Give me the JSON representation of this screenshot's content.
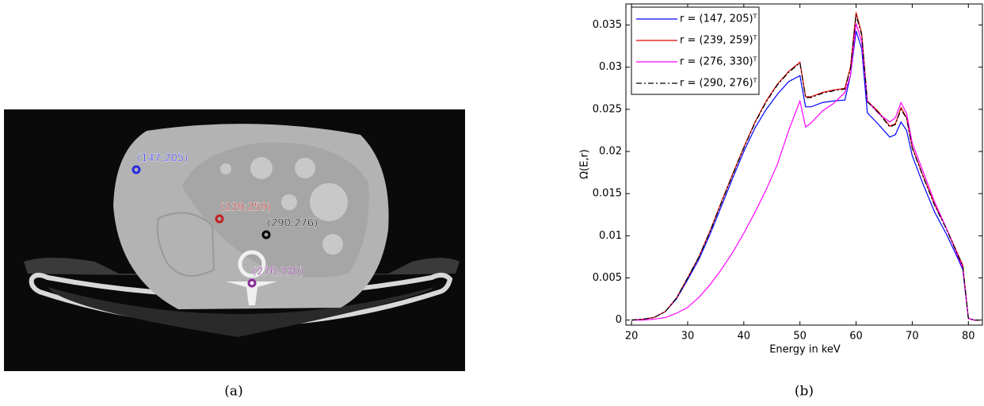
{
  "figure_a": {
    "annotations": [
      {
        "label": "(147;205)",
        "color": "#2a2ae0"
      },
      {
        "label": "(239;259)",
        "color": "#c02020"
      },
      {
        "label": "(290;276)",
        "color": "#000000"
      },
      {
        "label": "(276;330)",
        "color": "#8a2a9a"
      }
    ],
    "caption": "(a)"
  },
  "chart_data": {
    "type": "line",
    "xlabel": "Energy in keV",
    "ylabel": "Ω(E,r)",
    "x": [
      20,
      22,
      24,
      26,
      28,
      30,
      32,
      34,
      36,
      38,
      40,
      42,
      44,
      46,
      48,
      50,
      51,
      52,
      54,
      56,
      58,
      59,
      60,
      61,
      62,
      64,
      66,
      67,
      68,
      69,
      70,
      72,
      74,
      76,
      78,
      79,
      80,
      81,
      82
    ],
    "series": [
      {
        "name": "r = (147, 205)ᵀ",
        "color": "#0000ff",
        "line_style": "solid",
        "values": [
          0,
          0.0001,
          0.0003,
          0.001,
          0.0025,
          0.0048,
          0.0072,
          0.0102,
          0.0135,
          0.0168,
          0.02,
          0.0228,
          0.025,
          0.0268,
          0.0283,
          0.029,
          0.0253,
          0.0253,
          0.0258,
          0.026,
          0.0261,
          0.029,
          0.0343,
          0.0322,
          0.0246,
          0.0232,
          0.0217,
          0.022,
          0.0235,
          0.0225,
          0.0195,
          0.016,
          0.0128,
          0.0103,
          0.0075,
          0.006,
          0.0002,
          0,
          0
        ]
      },
      {
        "name": "r = (239, 259)ᵀ",
        "color": "#dd0000",
        "line_style": "solid",
        "values": [
          0,
          0.0001,
          0.0003,
          0.001,
          0.0026,
          0.005,
          0.0075,
          0.0106,
          0.014,
          0.0173,
          0.0205,
          0.0235,
          0.026,
          0.028,
          0.0295,
          0.0306,
          0.0265,
          0.0265,
          0.027,
          0.0273,
          0.0275,
          0.03,
          0.0365,
          0.034,
          0.026,
          0.0247,
          0.023,
          0.0233,
          0.0252,
          0.024,
          0.0205,
          0.017,
          0.0137,
          0.011,
          0.008,
          0.0065,
          0.0002,
          0,
          0
        ]
      },
      {
        "name": "r = (276, 330)ᵀ",
        "color": "#ff00ff",
        "line_style": "solid",
        "values": [
          0,
          0,
          0.0001,
          0.0003,
          0.0008,
          0.0015,
          0.0027,
          0.0042,
          0.006,
          0.008,
          0.0103,
          0.0128,
          0.0155,
          0.0185,
          0.0225,
          0.026,
          0.0229,
          0.0234,
          0.0248,
          0.0257,
          0.027,
          0.029,
          0.0352,
          0.033,
          0.026,
          0.0245,
          0.0235,
          0.024,
          0.0258,
          0.0245,
          0.021,
          0.0175,
          0.014,
          0.011,
          0.0078,
          0.0062,
          0.0002,
          0,
          0
        ]
      },
      {
        "name": "r = (290, 276)ᵀ",
        "color": "#000000",
        "line_style": "dashdot",
        "values": [
          0,
          0.0001,
          0.0003,
          0.001,
          0.0026,
          0.005,
          0.0075,
          0.0105,
          0.0139,
          0.0172,
          0.0204,
          0.0234,
          0.0259,
          0.0279,
          0.0294,
          0.0305,
          0.0264,
          0.0264,
          0.0269,
          0.0272,
          0.0274,
          0.0298,
          0.0362,
          0.0338,
          0.0259,
          0.0246,
          0.0229,
          0.0232,
          0.025,
          0.0239,
          0.0204,
          0.0169,
          0.0136,
          0.0109,
          0.0079,
          0.0064,
          0.0002,
          0,
          0
        ]
      }
    ],
    "xlim": [
      19,
      82.5
    ],
    "ylim": [
      -0.0006,
      0.0375
    ],
    "xticks": [
      20,
      30,
      40,
      50,
      60,
      70,
      80
    ],
    "yticks": [
      0,
      0.005,
      0.01,
      0.015,
      0.02,
      0.025,
      0.03,
      0.035
    ],
    "legend": "upper-left",
    "caption": "(b)"
  }
}
